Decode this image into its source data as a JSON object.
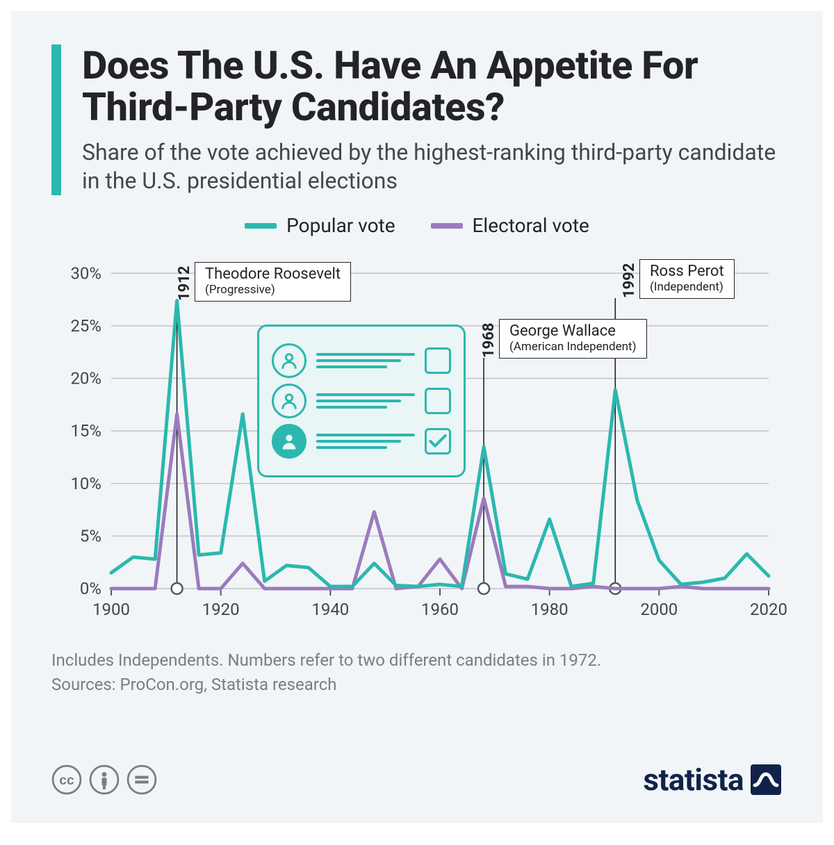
{
  "title": "Does The U.S. Have An Appetite For Third-Party Candidates?",
  "subtitle": "Share of the vote achieved by the highest-ranking third-party candidate in the U.S. presidential elections",
  "legend": {
    "popular": "Popular vote",
    "electoral": "Electoral vote"
  },
  "footnote_line1": "Includes Independents. Numbers refer to two different candidates in 1972.",
  "footnote_line2": "Sources: ProCon.org, Statista research",
  "brand": "statista",
  "chart": {
    "type": "line",
    "xlim": [
      1900,
      2020
    ],
    "ylim": [
      0,
      32
    ],
    "xtick_step": 20,
    "ytick_step": 5,
    "ytick_suffix": "%",
    "ytick_max_label": 30,
    "background_color": "#f1f5f7",
    "grid_color": "#bfc4c9",
    "axis_color": "#54585d",
    "axis_label_color": "#44464a",
    "axis_fontsize": 24,
    "line_width": 5,
    "series": [
      {
        "name": "Popular vote",
        "color": "#2bb8ae",
        "data": [
          {
            "x": 1900,
            "y": 1.5
          },
          {
            "x": 1904,
            "y": 3.0
          },
          {
            "x": 1908,
            "y": 2.8
          },
          {
            "x": 1912,
            "y": 27.4
          },
          {
            "x": 1916,
            "y": 3.2
          },
          {
            "x": 1920,
            "y": 3.4
          },
          {
            "x": 1924,
            "y": 16.6
          },
          {
            "x": 1928,
            "y": 0.7
          },
          {
            "x": 1932,
            "y": 2.2
          },
          {
            "x": 1936,
            "y": 2.0
          },
          {
            "x": 1940,
            "y": 0.2
          },
          {
            "x": 1944,
            "y": 0.2
          },
          {
            "x": 1948,
            "y": 2.4
          },
          {
            "x": 1952,
            "y": 0.3
          },
          {
            "x": 1956,
            "y": 0.2
          },
          {
            "x": 1960,
            "y": 0.4
          },
          {
            "x": 1964,
            "y": 0.2
          },
          {
            "x": 1968,
            "y": 13.5
          },
          {
            "x": 1972,
            "y": 1.4
          },
          {
            "x": 1976,
            "y": 0.9
          },
          {
            "x": 1980,
            "y": 6.6
          },
          {
            "x": 1984,
            "y": 0.2
          },
          {
            "x": 1988,
            "y": 0.5
          },
          {
            "x": 1992,
            "y": 18.9
          },
          {
            "x": 1996,
            "y": 8.4
          },
          {
            "x": 2000,
            "y": 2.7
          },
          {
            "x": 2004,
            "y": 0.4
          },
          {
            "x": 2008,
            "y": 0.6
          },
          {
            "x": 2012,
            "y": 1.0
          },
          {
            "x": 2016,
            "y": 3.3
          },
          {
            "x": 2020,
            "y": 1.2
          }
        ]
      },
      {
        "name": "Electoral vote",
        "color": "#9b7bbe",
        "data": [
          {
            "x": 1900,
            "y": 0
          },
          {
            "x": 1904,
            "y": 0
          },
          {
            "x": 1908,
            "y": 0
          },
          {
            "x": 1912,
            "y": 16.6
          },
          {
            "x": 1916,
            "y": 0
          },
          {
            "x": 1920,
            "y": 0
          },
          {
            "x": 1924,
            "y": 2.4
          },
          {
            "x": 1928,
            "y": 0
          },
          {
            "x": 1932,
            "y": 0
          },
          {
            "x": 1936,
            "y": 0
          },
          {
            "x": 1940,
            "y": 0
          },
          {
            "x": 1944,
            "y": 0
          },
          {
            "x": 1948,
            "y": 7.3
          },
          {
            "x": 1952,
            "y": 0
          },
          {
            "x": 1956,
            "y": 0.2
          },
          {
            "x": 1960,
            "y": 2.8
          },
          {
            "x": 1964,
            "y": 0
          },
          {
            "x": 1968,
            "y": 8.6
          },
          {
            "x": 1972,
            "y": 0.2
          },
          {
            "x": 1976,
            "y": 0.2
          },
          {
            "x": 1980,
            "y": 0
          },
          {
            "x": 1984,
            "y": 0
          },
          {
            "x": 1988,
            "y": 0.2
          },
          {
            "x": 1992,
            "y": 0
          },
          {
            "x": 1996,
            "y": 0
          },
          {
            "x": 2000,
            "y": 0
          },
          {
            "x": 2004,
            "y": 0.2
          },
          {
            "x": 2008,
            "y": 0
          },
          {
            "x": 2012,
            "y": 0
          },
          {
            "x": 2016,
            "y": 0
          },
          {
            "x": 2020,
            "y": 0
          }
        ]
      }
    ],
    "callouts": [
      {
        "year": "1912",
        "name": "Theodore Roosevelt",
        "party": "(Progressive)",
        "anchor_x": 1912
      },
      {
        "year": "1968",
        "name": "George Wallace",
        "party": "(American Independent)",
        "anchor_x": 1968
      },
      {
        "year": "1992",
        "name": "Ross Perot",
        "party": "(Independent)",
        "anchor_x": 1992
      }
    ],
    "callout_border": "#232328",
    "marker_stroke": "#54585d",
    "marker_fill": "#ffffff"
  }
}
